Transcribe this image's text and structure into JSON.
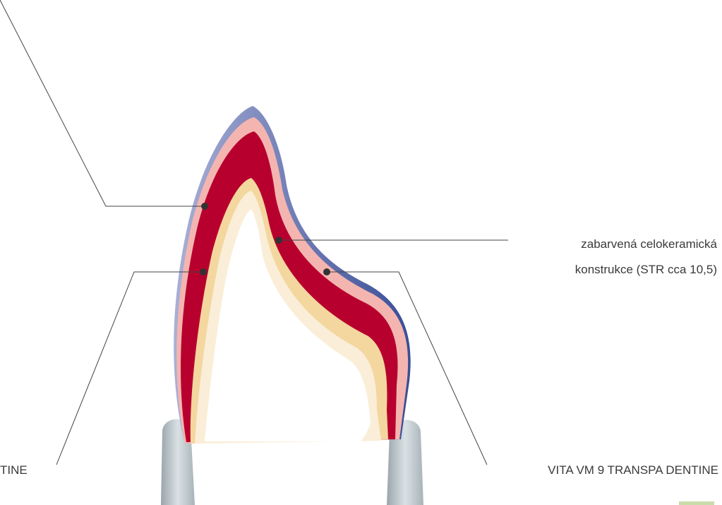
{
  "labels": {
    "left_bottom": "TINE",
    "right_middle": [
      "zabarvená celokeramická",
      "konstrukce (STR cca 10,5)"
    ],
    "right_bottom": "VITA VM 9 TRANSPA DENTINE"
  }
}
